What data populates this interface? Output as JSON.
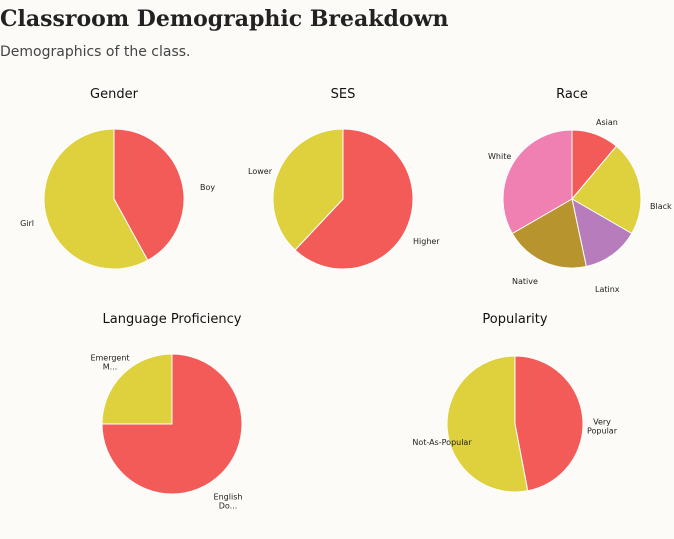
{
  "page": {
    "title": "Classroom Demographic Breakdown",
    "subtitle": "Demographics of the class."
  },
  "chart_data": [
    {
      "type": "pie",
      "title": "Gender",
      "slices": [
        {
          "label": "Boy",
          "value": 42,
          "color": "#f25b58"
        },
        {
          "label": "Girl",
          "value": 58,
          "color": "#dfd03e"
        }
      ]
    },
    {
      "type": "pie",
      "title": "SES",
      "slices": [
        {
          "label": "Higher",
          "value": 62,
          "color": "#f25b58"
        },
        {
          "label": "Lower",
          "value": 38,
          "color": "#dfd03e"
        }
      ]
    },
    {
      "type": "pie",
      "title": "Race",
      "slices": [
        {
          "label": "Asian",
          "value": 10,
          "color": "#f25b58"
        },
        {
          "label": "Black",
          "value": 20,
          "color": "#dfd03e"
        },
        {
          "label": "Latinx",
          "value": 12,
          "color": "#b77cbc"
        },
        {
          "label": "Native",
          "value": 18,
          "color": "#b8942f"
        },
        {
          "label": "White",
          "value": 30,
          "color": "#f080b1"
        }
      ]
    },
    {
      "type": "pie",
      "title": "Language Proficiency",
      "slices": [
        {
          "label": "English Do...",
          "value": 75,
          "color": "#f25b58"
        },
        {
          "label": "Emergent M...",
          "value": 25,
          "color": "#dfd03e"
        }
      ]
    },
    {
      "type": "pie",
      "title": "Popularity",
      "slices": [
        {
          "label": "Very Popular",
          "value": 47,
          "color": "#f25b58"
        },
        {
          "label": "Not-As-Popular",
          "value": 53,
          "color": "#dfd03e"
        }
      ]
    }
  ]
}
